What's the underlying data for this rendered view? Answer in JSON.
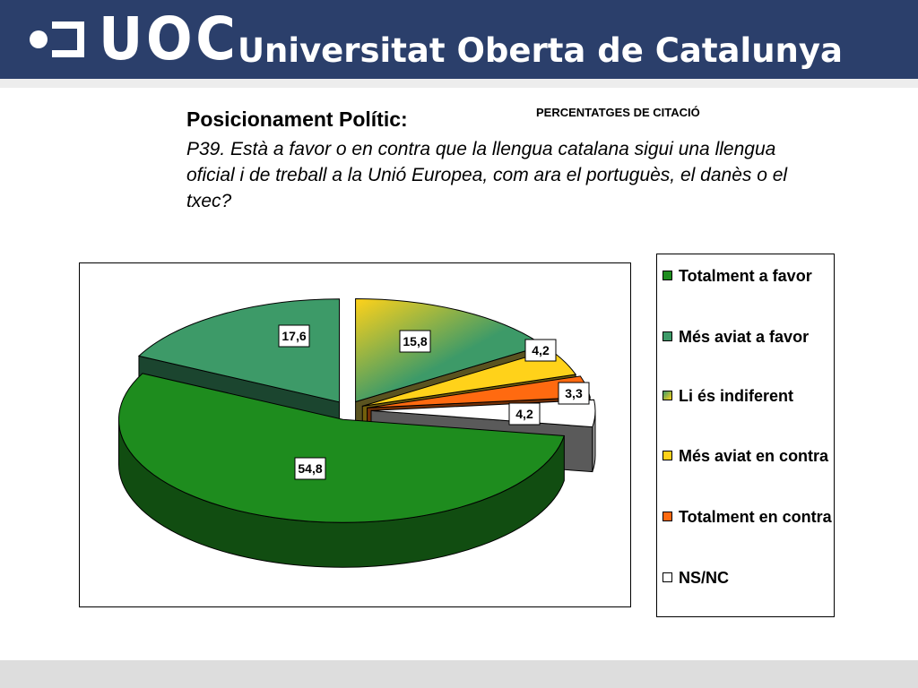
{
  "header": {
    "brand_mark": "UOC",
    "brand_name": "Universitat Oberta de Catalunya"
  },
  "slide": {
    "title": "Posicionament Polític:",
    "note": "PERCENTATGES DE CITACIÓ",
    "question": "P39. Està a favor o en contra que la llengua catalana sigui una llengua oficial i de treball a la Unió Europea, com ara el portuguès, el danès o el txec?"
  },
  "colors": {
    "header_bg": "#2b3f6b",
    "totalment_a_favor": "#1e8c1e",
    "mes_aviat_a_favor": "#3d9a68",
    "li_es_indiferent": "#c8b848",
    "mes_aviat_en_contra": "#ffd21a",
    "totalment_en_contra": "#ff6a10",
    "ns_nc": "#ffffff"
  },
  "chart_data": {
    "type": "pie",
    "title": "",
    "style": "3d-exploded",
    "legend_position": "right",
    "series": [
      {
        "name": "Totalment a favor",
        "label": "54,8",
        "value": 54.8,
        "color": "#1e8c1e"
      },
      {
        "name": "Més aviat a favor",
        "label": "17,6",
        "value": 17.6,
        "color": "#3d9a68"
      },
      {
        "name": "Li és indiferent",
        "label": "15,8",
        "value": 15.8,
        "color": "#c8b848"
      },
      {
        "name": "Més aviat en contra",
        "label": "4,2",
        "value": 4.2,
        "color": "#ffd21a"
      },
      {
        "name": "Totalment en contra",
        "label": "3,3",
        "value": 3.3,
        "color": "#ff6a10"
      },
      {
        "name": "NS/NC",
        "label": "4,2",
        "value": 4.2,
        "color": "#ffffff"
      }
    ]
  }
}
